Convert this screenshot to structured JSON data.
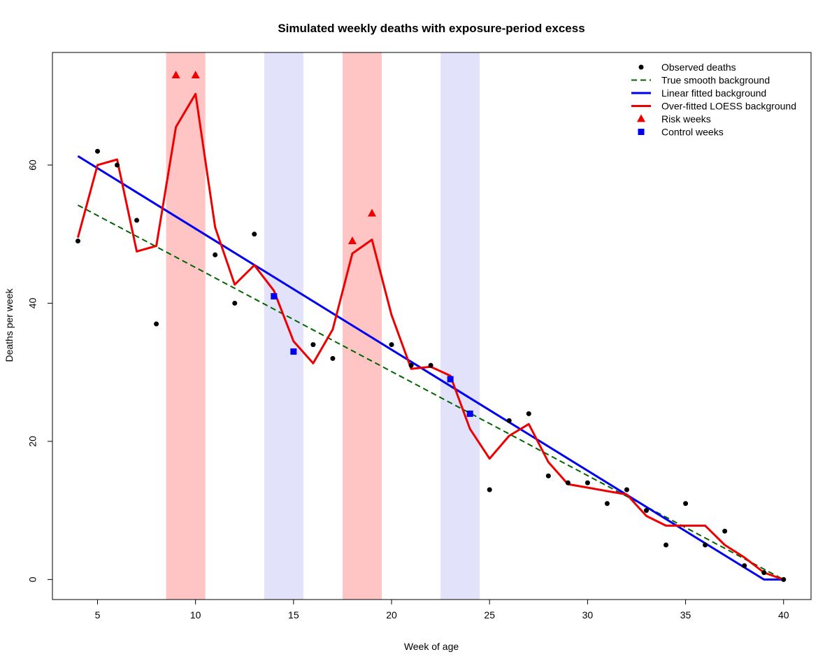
{
  "chart_data": {
    "type": "line",
    "title": "Simulated weekly deaths with exposure-period excess",
    "xlabel": "Week of age",
    "ylabel": "Deaths per week",
    "xlim": [
      2.7,
      41.4
    ],
    "ylim": [
      -2.9,
      76.3
    ],
    "xticks": [
      5,
      10,
      15,
      20,
      25,
      30,
      35,
      40
    ],
    "yticks": [
      0,
      20,
      40,
      60
    ],
    "grid": false,
    "legend_position": "top-right",
    "shaded_bands": [
      {
        "kind": "risk",
        "x0": 8.5,
        "x1": 10.5,
        "color": "#ffc4c4"
      },
      {
        "kind": "control",
        "x0": 13.5,
        "x1": 15.5,
        "color": "#e2e2fb"
      },
      {
        "kind": "risk",
        "x0": 17.5,
        "x1": 19.5,
        "color": "#ffc4c4"
      },
      {
        "kind": "control",
        "x0": 22.5,
        "x1": 24.5,
        "color": "#e2e2fb"
      }
    ],
    "series": [
      {
        "name": "Observed deaths",
        "type": "scatter",
        "marker": "circle",
        "color": "#000000",
        "x": [
          4,
          5,
          6,
          7,
          8,
          11,
          12,
          13,
          16,
          17,
          20,
          21,
          22,
          25,
          26,
          27,
          28,
          29,
          30,
          31,
          32,
          33,
          34,
          35,
          36,
          37,
          38,
          39,
          40
        ],
        "y": [
          49,
          62,
          60,
          52,
          37,
          47,
          40,
          50,
          34,
          32,
          34,
          31,
          31,
          13,
          23,
          24,
          15,
          14,
          14,
          11,
          13,
          10,
          5,
          11,
          5,
          7,
          2,
          1,
          0
        ]
      },
      {
        "name": "True smooth background",
        "type": "line",
        "dash": true,
        "color": "#006400",
        "x": [
          4,
          40
        ],
        "y": [
          54.2,
          0
        ]
      },
      {
        "name": "Linear fitted background",
        "type": "line",
        "color": "#0000ee",
        "x": [
          4,
          39,
          40
        ],
        "y": [
          61.3,
          0,
          0
        ]
      },
      {
        "name": "Over-fitted LOESS background",
        "type": "line",
        "color": "#ee0000",
        "x": [
          4,
          5,
          6,
          7,
          8,
          9,
          10,
          11,
          12,
          13,
          14,
          15,
          16,
          17,
          18,
          19,
          20,
          21,
          22,
          23,
          24,
          25,
          26,
          27,
          28,
          29,
          30,
          31,
          32,
          33,
          34,
          35,
          36,
          37,
          38,
          39,
          40
        ],
        "y": [
          49.5,
          60,
          60.8,
          47.5,
          48.3,
          65.5,
          70.3,
          51,
          42.7,
          45.5,
          41.8,
          34.5,
          31.3,
          36.2,
          47.2,
          49.2,
          38.3,
          30.5,
          30.8,
          29.5,
          21.8,
          17.5,
          20.8,
          22.5,
          17,
          13.8,
          13.3,
          12.8,
          12.3,
          9.2,
          7.8,
          7.8,
          7.8,
          5,
          3.2,
          1,
          0
        ]
      },
      {
        "name": "Risk weeks",
        "type": "scatter",
        "marker": "triangle",
        "color": "#ee0000",
        "x": [
          9,
          10,
          18,
          19
        ],
        "y": [
          73,
          73,
          49,
          53
        ]
      },
      {
        "name": "Control weeks",
        "type": "scatter",
        "marker": "square",
        "color": "#0000ee",
        "x": [
          14,
          15,
          23,
          24
        ],
        "y": [
          41,
          33,
          29,
          24
        ]
      }
    ]
  }
}
